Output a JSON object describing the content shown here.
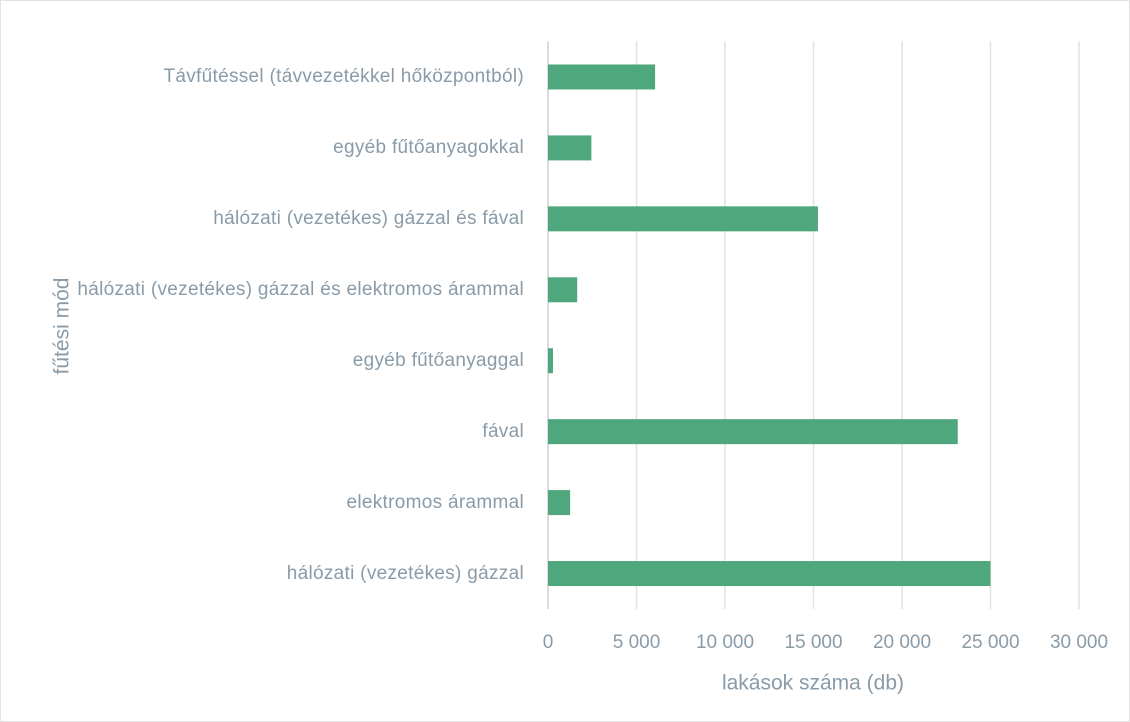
{
  "chart_data": {
    "type": "hbar",
    "orientation": "horizontal",
    "categories": [
      "Távfűtéssel (távvezetékkel hőközpontból)",
      "egyéb fűtőanyagokkal",
      "hálózati (vezetékes) gázzal és fával",
      "hálózati (vezetékes) gázzal és elektromos árammal",
      "egyéb fűtőanyaggal",
      "fával",
      "elektromos árammal",
      "hálózati (vezetékes) gázzal"
    ],
    "values": [
      6050,
      2450,
      15250,
      1650,
      280,
      23150,
      1250,
      25000
    ],
    "color": "#4fa77d",
    "xlim": [
      0,
      30000
    ],
    "xticks": [
      0,
      {
        "value": 5000,
        "label": "5 000"
      },
      {
        "value": 10000,
        "label": "10 000"
      },
      {
        "value": 15000,
        "label": "15 000"
      },
      {
        "value": 20000,
        "label": "20 000"
      },
      {
        "value": 25000,
        "label": "25 000"
      },
      {
        "value": 30000,
        "label": "30 000"
      }
    ],
    "xlabel": "lakások száma (db)",
    "ylabel": "fűtési mód",
    "grid": true
  }
}
